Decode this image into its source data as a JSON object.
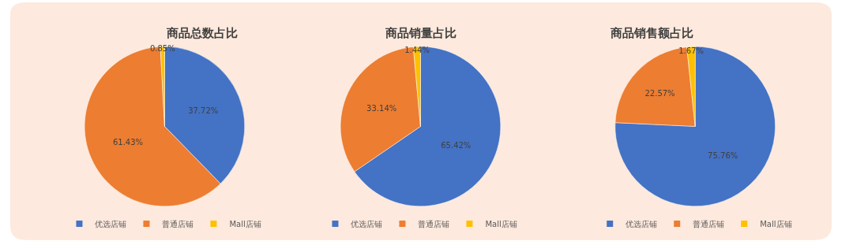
{
  "chart_data": [
    {
      "type": "pie",
      "title": "商品总数占比",
      "categories": [
        "优选店铺",
        "普通店铺",
        "Mall店铺"
      ],
      "values": [
        37.72,
        61.43,
        0.85
      ],
      "value_labels": [
        "37.72%",
        "61.43%",
        "0.85%"
      ],
      "colors": [
        "#4472c4",
        "#ed7d31",
        "#ffc000"
      ],
      "legend": "bottom"
    },
    {
      "type": "pie",
      "title": "商品销量占比",
      "categories": [
        "优选店铺",
        "普通店铺",
        "Mall店铺"
      ],
      "values": [
        65.42,
        33.14,
        1.44
      ],
      "value_labels": [
        "65.42%",
        "33.14%",
        "1.44%"
      ],
      "colors": [
        "#4472c4",
        "#ed7d31",
        "#ffc000"
      ],
      "legend": "bottom"
    },
    {
      "type": "pie",
      "title": "商品销售额占比",
      "categories": [
        "优选店铺",
        "普通店铺",
        "Mall店铺"
      ],
      "values": [
        75.76,
        22.57,
        1.67
      ],
      "value_labels": [
        "75.76%",
        "22.57%",
        "1.67%"
      ],
      "colors": [
        "#4472c4",
        "#ed7d31",
        "#ffc000"
      ],
      "legend": "bottom"
    }
  ]
}
